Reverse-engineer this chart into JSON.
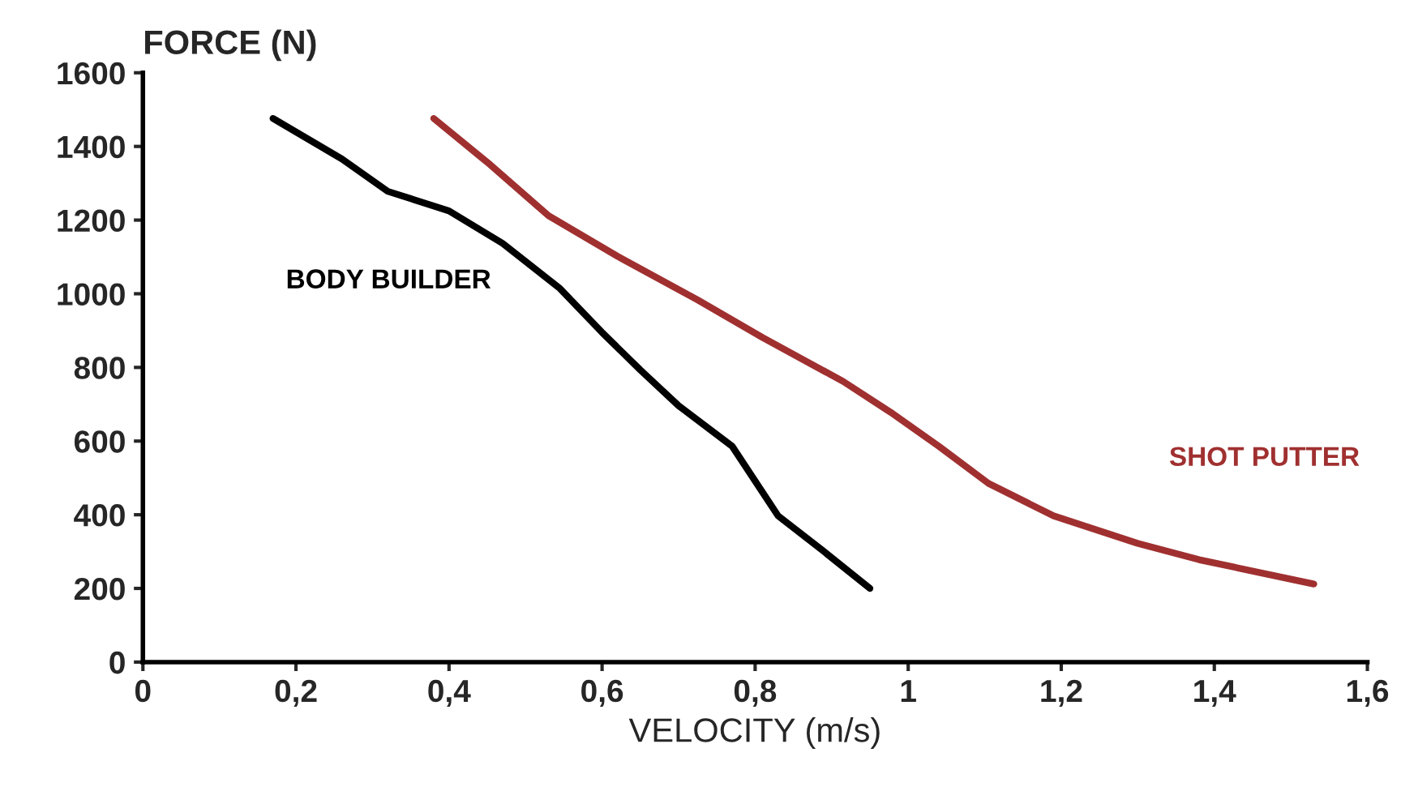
{
  "chart_data": {
    "type": "line",
    "xlabel": "VELOCITY (m/s)",
    "ylabel": "FORCE (N)",
    "xlim": [
      0,
      1.6
    ],
    "ylim": [
      0,
      1600
    ],
    "xticks": [
      0,
      {
        "value": 0.2,
        "label": "0,2"
      },
      {
        "value": 0.4,
        "label": "0,4"
      },
      {
        "value": 0.6,
        "label": "0,6"
      },
      {
        "value": 0.8,
        "label": "0,8"
      },
      1,
      {
        "value": 1.2,
        "label": "1,2"
      },
      {
        "value": 1.4,
        "label": "1,4"
      },
      {
        "value": 1.6,
        "label": "1,6"
      }
    ],
    "yticks": [
      0,
      200,
      400,
      600,
      800,
      1000,
      1200,
      1400,
      1600
    ],
    "grid": false,
    "legend": false,
    "marker": "none",
    "line_style": "solid",
    "series": [
      {
        "name": "BODY BUILDER",
        "color": "#000000",
        "x": [
          0.17,
          0.26,
          0.32,
          0.4,
          0.47,
          0.545,
          0.6,
          0.65,
          0.7,
          0.77,
          0.83,
          0.89,
          0.95
        ],
        "values": [
          1476,
          1366,
          1278,
          1225,
          1137,
          1014,
          895,
          793,
          696,
          586,
          397,
          300,
          200
        ]
      },
      {
        "name": "SHOT PUTTER",
        "color": "#a03030",
        "x": [
          0.38,
          0.45,
          0.53,
          0.62,
          0.725,
          0.81,
          0.915,
          0.98,
          1.04,
          1.105,
          1.19,
          1.3,
          1.38,
          1.53
        ],
        "values": [
          1476,
          1357,
          1212,
          1102,
          983,
          881,
          762,
          674,
          586,
          485,
          397,
          322,
          278,
          212
        ]
      }
    ]
  }
}
